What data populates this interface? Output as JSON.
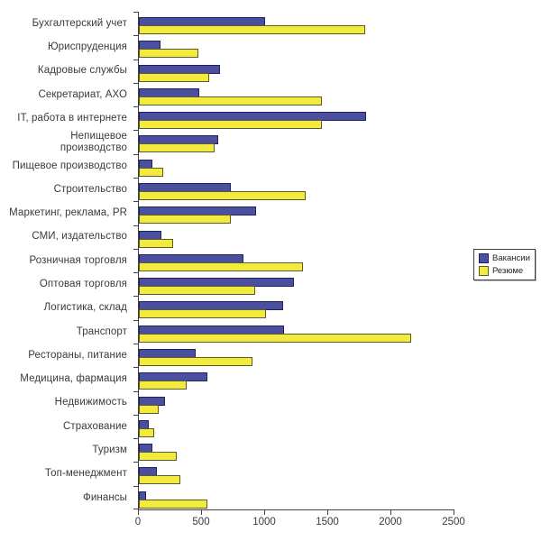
{
  "chart_data": {
    "type": "bar",
    "orientation": "horizontal",
    "title": "",
    "xlabel": "",
    "ylabel": "",
    "xlim": [
      0,
      2500
    ],
    "x_ticks": [
      0,
      500,
      1000,
      1500,
      2000,
      2500
    ],
    "grid": false,
    "legend_position": "middle-right",
    "categories": [
      "Бухгалтерский учет",
      "Юриспруденция",
      "Кадровые службы",
      "Секретариат,  АХО",
      "IT, работа в интернете",
      "Непищевое\nпроизводство",
      "Пищевое производство",
      "Строительство",
      "Маркетинг, реклама, PR",
      "СМИ, издательство",
      "Розничная торговля",
      "Оптовая торговля",
      "Логистика, склад",
      "Транспорт",
      "Рестораны, питание",
      "Медицина, фармация",
      "Недвижимость",
      "Страхование",
      "Туризм",
      "Топ-менеджмент",
      "Финансы"
    ],
    "series": [
      {
        "name": "Вакансии",
        "color": "#4a4f9f",
        "border_color": "#20235f",
        "values": [
          1000,
          170,
          640,
          480,
          1800,
          630,
          110,
          730,
          930,
          180,
          830,
          1230,
          1140,
          1150,
          450,
          540,
          210,
          80,
          110,
          140,
          60
        ]
      },
      {
        "name": "Резюме",
        "color": "#f2eb3d",
        "border_color": "#5d5b2a",
        "values": [
          1790,
          470,
          560,
          1450,
          1450,
          600,
          190,
          1320,
          730,
          270,
          1300,
          920,
          1010,
          2160,
          900,
          380,
          160,
          120,
          300,
          330,
          540
        ]
      }
    ],
    "style": {
      "axis_color": "#3f3f3f",
      "label_color": "#3a3a3a",
      "background": "#ffffff"
    }
  }
}
